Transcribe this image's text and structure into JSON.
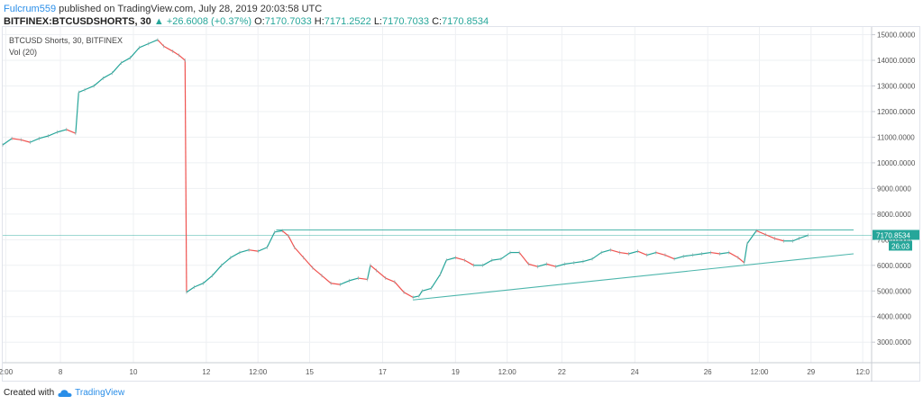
{
  "header": {
    "author": "Fulcrum559",
    "published": " published on TradingView.com, July 28, 2019 20:03:58 UTC",
    "symbol": "BITFINEX:BTCUSDSHORTS, 30",
    "change_arrow": "▲",
    "change": "+26.6008 (+0.37%)",
    "o_label": "O:",
    "o": "7170.7033",
    "h_label": "H:",
    "h": "7171.2522",
    "l_label": "L:",
    "l": "7170.7033",
    "c_label": "C:",
    "c": "7170.8534"
  },
  "legend": {
    "title": "BTCUSD Shorts, 30, BITFINEX",
    "volume": "Vol (20)"
  },
  "footer": {
    "created_with": "Created with",
    "brand": "TradingView"
  },
  "colors": {
    "up": "#26a69a",
    "down": "#ef5350",
    "trendline": "#4db6ac",
    "grid": "#eef0f3",
    "axis_text": "#555555"
  },
  "chart_data": {
    "type": "line",
    "title": "BTCUSD Shorts, 30, BITFINEX",
    "ylim": [
      2200,
      15300
    ],
    "xlim": [
      0,
      28
    ],
    "y_ticks": [
      "15000.0000",
      "14000.0000",
      "13000.0000",
      "12000.0000",
      "11000.0000",
      "10000.0000",
      "9000.0000",
      "8000.0000",
      "7000.0000",
      "6000.0000",
      "5000.0000",
      "4000.0000",
      "3000.0000"
    ],
    "y_tick_values": [
      15000,
      14000,
      13000,
      12000,
      11000,
      10000,
      9000,
      8000,
      7000,
      6000,
      5000,
      4000,
      3000
    ],
    "x_ticks": [
      {
        "label": "2:00",
        "x": 0.1
      },
      {
        "label": "8",
        "x": 1.9
      },
      {
        "label": "10",
        "x": 4.3
      },
      {
        "label": "12",
        "x": 6.7
      },
      {
        "label": "12:00",
        "x": 8.4
      },
      {
        "label": "15",
        "x": 10.1
      },
      {
        "label": "17",
        "x": 12.5
      },
      {
        "label": "19",
        "x": 14.9
      },
      {
        "label": "12:00",
        "x": 16.6
      },
      {
        "label": "22",
        "x": 18.4
      },
      {
        "label": "24",
        "x": 20.8
      },
      {
        "label": "26",
        "x": 23.2
      },
      {
        "label": "12:00",
        "x": 24.9
      },
      {
        "label": "29",
        "x": 26.6
      },
      {
        "label": "12:0",
        "x": 28.3
      }
    ],
    "series": [
      {
        "values": [
          [
            0.0,
            10700
          ],
          [
            0.3,
            10950
          ],
          [
            0.6,
            10900
          ],
          [
            0.9,
            10800
          ],
          [
            1.2,
            10950
          ],
          [
            1.5,
            11050
          ],
          [
            1.8,
            11200
          ],
          [
            2.1,
            11300
          ],
          [
            2.4,
            11150
          ],
          [
            2.5,
            12750
          ],
          [
            2.7,
            12850
          ],
          [
            3.0,
            13000
          ],
          [
            3.3,
            13300
          ],
          [
            3.6,
            13500
          ],
          [
            3.9,
            13900
          ],
          [
            4.2,
            14100
          ],
          [
            4.5,
            14500
          ],
          [
            4.8,
            14650
          ],
          [
            5.1,
            14800
          ],
          [
            5.3,
            14550
          ],
          [
            5.6,
            14350
          ],
          [
            5.8,
            14200
          ],
          [
            6.0,
            14000
          ],
          [
            6.05,
            4950
          ],
          [
            6.3,
            5150
          ],
          [
            6.6,
            5300
          ],
          [
            6.9,
            5600
          ],
          [
            7.2,
            6000
          ],
          [
            7.5,
            6300
          ],
          [
            7.8,
            6500
          ],
          [
            8.1,
            6600
          ],
          [
            8.4,
            6550
          ],
          [
            8.7,
            6700
          ],
          [
            8.95,
            7300
          ],
          [
            9.2,
            7350
          ],
          [
            9.4,
            7150
          ],
          [
            9.6,
            6700
          ],
          [
            9.9,
            6300
          ],
          [
            10.2,
            5900
          ],
          [
            10.5,
            5600
          ],
          [
            10.8,
            5300
          ],
          [
            11.1,
            5250
          ],
          [
            11.4,
            5400
          ],
          [
            11.7,
            5500
          ],
          [
            12.0,
            5450
          ],
          [
            12.1,
            6000
          ],
          [
            12.3,
            5800
          ],
          [
            12.6,
            5500
          ],
          [
            12.9,
            5350
          ],
          [
            13.2,
            4950
          ],
          [
            13.5,
            4750
          ],
          [
            13.7,
            4800
          ],
          [
            13.8,
            5000
          ],
          [
            14.1,
            5100
          ],
          [
            14.4,
            5650
          ],
          [
            14.6,
            6200
          ],
          [
            14.9,
            6300
          ],
          [
            15.2,
            6200
          ],
          [
            15.5,
            6000
          ],
          [
            15.8,
            6000
          ],
          [
            16.1,
            6200
          ],
          [
            16.4,
            6250
          ],
          [
            16.7,
            6500
          ],
          [
            17.0,
            6500
          ],
          [
            17.3,
            6050
          ],
          [
            17.6,
            5950
          ],
          [
            17.9,
            6050
          ],
          [
            18.2,
            5950
          ],
          [
            18.5,
            6050
          ],
          [
            18.8,
            6100
          ],
          [
            19.1,
            6150
          ],
          [
            19.4,
            6250
          ],
          [
            19.7,
            6500
          ],
          [
            20.0,
            6600
          ],
          [
            20.3,
            6500
          ],
          [
            20.6,
            6450
          ],
          [
            20.9,
            6550
          ],
          [
            21.2,
            6400
          ],
          [
            21.5,
            6500
          ],
          [
            21.8,
            6400
          ],
          [
            22.1,
            6250
          ],
          [
            22.4,
            6350
          ],
          [
            22.7,
            6400
          ],
          [
            23.0,
            6450
          ],
          [
            23.3,
            6500
          ],
          [
            23.6,
            6450
          ],
          [
            23.9,
            6500
          ],
          [
            24.2,
            6300
          ],
          [
            24.4,
            6100
          ],
          [
            24.5,
            6850
          ],
          [
            24.8,
            7350
          ],
          [
            25.1,
            7200
          ],
          [
            25.4,
            7050
          ],
          [
            25.7,
            6950
          ],
          [
            26.0,
            6950
          ],
          [
            26.2,
            7050
          ],
          [
            26.5,
            7170
          ]
        ]
      }
    ],
    "trendlines": [
      {
        "from": [
          9.0,
          7380
        ],
        "to": [
          28.0,
          7380
        ]
      },
      {
        "from": [
          13.5,
          4650
        ],
        "to": [
          28.0,
          6450
        ]
      }
    ],
    "hline": 7170.8534,
    "last_price": "7170.8534",
    "countdown": "26:03"
  }
}
